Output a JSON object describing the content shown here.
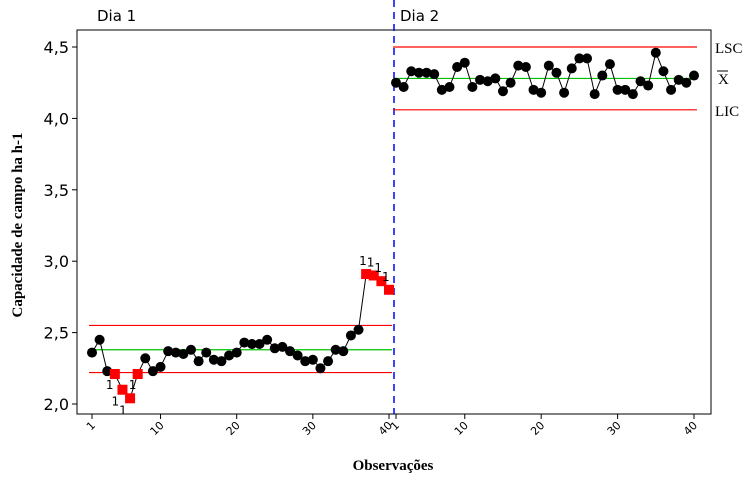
{
  "chart_data": {
    "type": "line",
    "title": "",
    "xlabel": "Observações",
    "ylabel": "Capacidade de campo ha h-1",
    "ylim": [
      1.95,
      4.6
    ],
    "yticks": [
      "2,0",
      "2,5",
      "3,0",
      "3,5",
      "4,0",
      "4,5"
    ],
    "ytick_values": [
      2.0,
      2.5,
      3.0,
      3.5,
      4.0,
      4.5
    ],
    "grid": false,
    "legend": "none",
    "stages": [
      {
        "name": "Dia 1",
        "xticks": [
          "1",
          "10",
          "20",
          "30",
          "40"
        ],
        "xtick_values": [
          1,
          10,
          20,
          30,
          40
        ],
        "LSC": 2.55,
        "mean": 2.38,
        "LIC": 2.22,
        "values": [
          2.36,
          2.45,
          2.23,
          2.21,
          2.1,
          2.04,
          2.21,
          2.32,
          2.23,
          2.26,
          2.37,
          2.36,
          2.35,
          2.38,
          2.3,
          2.36,
          2.31,
          2.3,
          2.34,
          2.36,
          2.43,
          2.42,
          2.42,
          2.45,
          2.39,
          2.4,
          2.37,
          2.34,
          2.3,
          2.31,
          2.25,
          2.3,
          2.38,
          2.37,
          2.48,
          2.52,
          2.91,
          2.9,
          2.86,
          2.8
        ],
        "out_of_control": [
          4,
          5,
          6,
          7,
          37,
          38,
          39,
          40
        ]
      },
      {
        "name": "Dia 2",
        "xticks": [
          "1",
          "10",
          "20",
          "30",
          "40"
        ],
        "xtick_values": [
          1,
          10,
          20,
          30,
          40
        ],
        "LSC": 4.5,
        "mean": 4.28,
        "LIC": 4.06,
        "values": [
          4.25,
          4.22,
          4.33,
          4.32,
          4.32,
          4.31,
          4.2,
          4.22,
          4.36,
          4.39,
          4.22,
          4.27,
          4.26,
          4.28,
          4.19,
          4.25,
          4.37,
          4.36,
          4.2,
          4.18,
          4.37,
          4.32,
          4.18,
          4.35,
          4.42,
          4.42,
          4.17,
          4.3,
          4.38,
          4.2,
          4.2,
          4.17,
          4.26,
          4.23,
          4.46,
          4.33,
          4.2,
          4.27,
          4.25,
          4.3
        ],
        "out_of_control": []
      }
    ],
    "annotations": [
      "1"
    ],
    "limit_labels": {
      "upper": "LSC",
      "center": "X",
      "lower": "LIC"
    },
    "colors": {
      "limit": "#ff0000",
      "center": "#00c000",
      "point": "#000000",
      "flag_point": "#ff0000",
      "stage_divider": "#0000ff"
    }
  }
}
